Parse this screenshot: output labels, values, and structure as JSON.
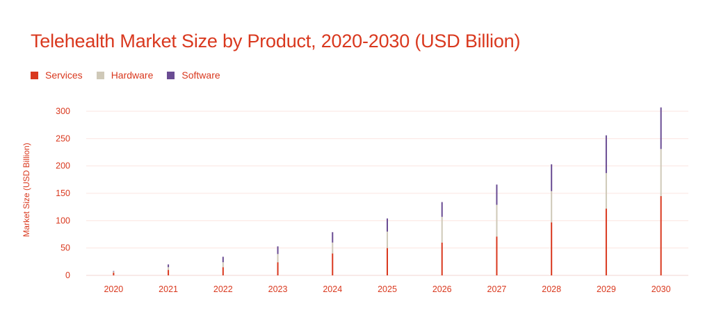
{
  "title": "Telehealth Market Size by Product, 2020-2030 (USD Billion)",
  "legend": [
    {
      "label": "Services",
      "color": "#d9381e"
    },
    {
      "label": "Hardware",
      "color": "#cfc9b8"
    },
    {
      "label": "Software",
      "color": "#6a4c93"
    }
  ],
  "chart_data": {
    "type": "bar",
    "stacked": true,
    "title": "Telehealth Market Size by Product, 2020-2030 (USD Billion)",
    "xlabel": "",
    "ylabel": "Market Size (USD Billion)",
    "ylim": [
      0,
      300
    ],
    "yticks": [
      0,
      50,
      100,
      150,
      200,
      250,
      300
    ],
    "grid": true,
    "legend_position": "top-left",
    "categories": [
      "2020",
      "2021",
      "2022",
      "2023",
      "2024",
      "2025",
      "2026",
      "2027",
      "2028",
      "2029",
      "2030"
    ],
    "series": [
      {
        "name": "Services",
        "color": "#d9381e",
        "values": [
          5,
          10,
          15,
          24,
          40,
          50,
          60,
          71,
          97,
          122,
          145
        ]
      },
      {
        "name": "Hardware",
        "color": "#cfc9b8",
        "values": [
          2,
          5,
          9,
          15,
          20,
          30,
          47,
          58,
          57,
          65,
          86
        ]
      },
      {
        "name": "Software",
        "color": "#6a4c93",
        "values": [
          1,
          5,
          10,
          14,
          19,
          24,
          27,
          37,
          49,
          69,
          76
        ]
      }
    ]
  }
}
